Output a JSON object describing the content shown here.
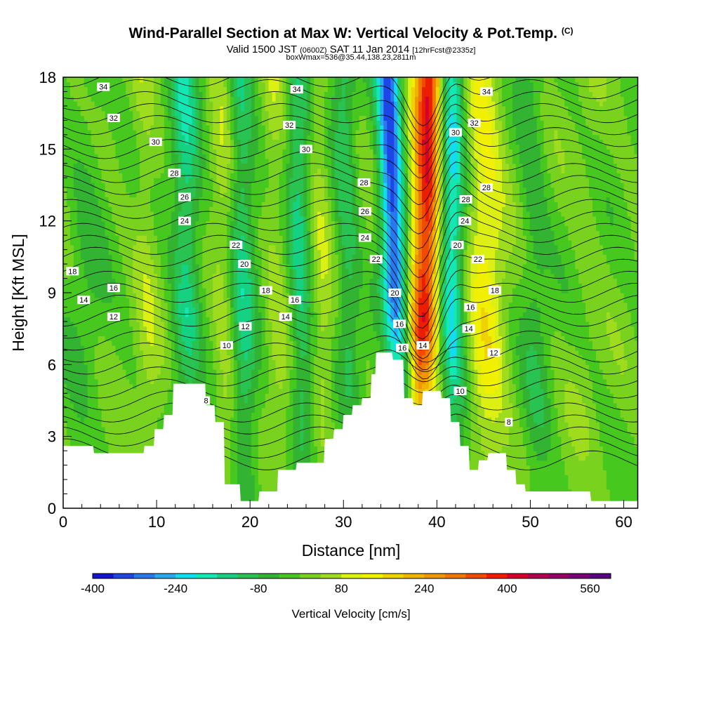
{
  "header": {
    "title": "Wind-Parallel Section at Max W: Vertical Velocity & Pot.Temp.",
    "title_units": "(C)",
    "valid_label": "Valid 1500 JST",
    "valid_utc": "(0600Z)",
    "valid_date": "SAT 11 Jan 2014",
    "forecast": "[12hrFcst@2335z]",
    "box_info": "boxWmax=536@35.44,138.23,2811m"
  },
  "chart_data": {
    "type": "heatmap",
    "xlabel": "Distance [nm]",
    "ylabel": "Height [Kft MSL]",
    "xlim": [
      0,
      61.5
    ],
    "ylim": [
      0,
      18
    ],
    "xticks": [
      0,
      10,
      20,
      30,
      40,
      50,
      60
    ],
    "yticks": [
      0,
      3,
      6,
      9,
      12,
      15,
      18
    ],
    "colorbar": {
      "label": "Vertical Velocity [cm/s]",
      "tick_labels": [
        -400,
        -240,
        -80,
        80,
        240,
        400,
        560
      ],
      "levels": [
        -400,
        -360,
        -320,
        -280,
        -240,
        -200,
        -160,
        -120,
        -80,
        -40,
        0,
        40,
        80,
        120,
        160,
        200,
        240,
        280,
        320,
        360,
        400,
        440,
        480,
        520,
        560
      ],
      "colors": [
        "#1414d2",
        "#1e46e6",
        "#2878ee",
        "#28aaf0",
        "#14dcf0",
        "#14e6b4",
        "#14d282",
        "#28c350",
        "#32b432",
        "#46c81e",
        "#78d21e",
        "#a0dc1e",
        "#dcf014",
        "#f0f000",
        "#f0d200",
        "#f0b400",
        "#f09600",
        "#f07800",
        "#f04b00",
        "#eb1e00",
        "#d2002d",
        "#b40050",
        "#960064",
        "#780078",
        "#5a0082"
      ]
    },
    "terrain_kft": [
      [
        0,
        2.6
      ],
      [
        3.2,
        2.6
      ],
      [
        3.3,
        2.3
      ],
      [
        8.6,
        2.3
      ],
      [
        8.7,
        2.6
      ],
      [
        9.7,
        2.6
      ],
      [
        9.8,
        3.3
      ],
      [
        10.7,
        3.3
      ],
      [
        10.8,
        3.9
      ],
      [
        11.7,
        3.9
      ],
      [
        11.8,
        5.2
      ],
      [
        15.2,
        5.2
      ],
      [
        15.3,
        4.3
      ],
      [
        16.2,
        4.3
      ],
      [
        16.3,
        3.6
      ],
      [
        17.2,
        3.6
      ],
      [
        17.3,
        1.0
      ],
      [
        18.9,
        1.0
      ],
      [
        19.0,
        0.3
      ],
      [
        20.9,
        0.3
      ],
      [
        21.0,
        0.7
      ],
      [
        22.9,
        0.7
      ],
      [
        23.0,
        1.6
      ],
      [
        24.9,
        1.6
      ],
      [
        25.0,
        1.9
      ],
      [
        27.9,
        1.9
      ],
      [
        28.0,
        2.9
      ],
      [
        28.9,
        2.9
      ],
      [
        29.0,
        3.3
      ],
      [
        29.9,
        3.3
      ],
      [
        30.0,
        3.9
      ],
      [
        30.9,
        3.9
      ],
      [
        31.0,
        4.3
      ],
      [
        31.9,
        4.3
      ],
      [
        32.0,
        4.6
      ],
      [
        32.9,
        4.6
      ],
      [
        33.0,
        5.6
      ],
      [
        33.4,
        5.6
      ],
      [
        33.5,
        6.5
      ],
      [
        35.2,
        6.5
      ],
      [
        35.3,
        6.2
      ],
      [
        36.4,
        6.2
      ],
      [
        36.5,
        4.6
      ],
      [
        37.4,
        4.6
      ],
      [
        37.5,
        4.3
      ],
      [
        38.4,
        4.3
      ],
      [
        38.5,
        4.9
      ],
      [
        40.4,
        4.9
      ],
      [
        40.5,
        4.6
      ],
      [
        41.4,
        4.6
      ],
      [
        41.5,
        3.6
      ],
      [
        42.4,
        3.6
      ],
      [
        42.5,
        2.6
      ],
      [
        43.4,
        2.6
      ],
      [
        43.5,
        1.6
      ],
      [
        44.4,
        1.6
      ],
      [
        44.5,
        2.0
      ],
      [
        45.4,
        2.0
      ],
      [
        45.5,
        2.3
      ],
      [
        47.4,
        2.3
      ],
      [
        47.5,
        1.6
      ],
      [
        48.4,
        1.6
      ],
      [
        48.5,
        1.0
      ],
      [
        49.4,
        1.0
      ],
      [
        49.5,
        0.7
      ],
      [
        56.4,
        0.7
      ],
      [
        56.5,
        0.3
      ],
      [
        61.5,
        0.3
      ]
    ],
    "w_features": [
      {
        "x0": 36.2,
        "x1": 34.8,
        "half_width": 1.3,
        "value": -340
      },
      {
        "x0": 38.2,
        "x1": 39.2,
        "half_width": 1.6,
        "value": 400
      },
      {
        "x0": 41.5,
        "x1": 41.5,
        "half_width": 1.4,
        "value": -220
      },
      {
        "x0": 45.8,
        "x1": 44.8,
        "half_width": 2.0,
        "value": 130
      },
      {
        "x0": 55.0,
        "x1": 56.5,
        "half_width": 1.6,
        "value": 20
      },
      {
        "x0": 2.0,
        "x1": 2.8,
        "half_width": 2.0,
        "value": -40
      },
      {
        "x0": 13.5,
        "x1": 13.0,
        "half_width": 1.5,
        "value": -140
      },
      {
        "x0": 19.5,
        "x1": 19.0,
        "half_width": 1.4,
        "value": -120
      },
      {
        "x0": 25.8,
        "x1": 25.0,
        "half_width": 1.2,
        "value": -120
      },
      {
        "x0": 31.0,
        "x1": 30.0,
        "half_width": 1.2,
        "value": -100
      },
      {
        "x0": 9.5,
        "x1": 8.5,
        "half_width": 1.3,
        "value": 50
      },
      {
        "x0": 17.5,
        "x1": 17.0,
        "half_width": 1.2,
        "value": 60
      },
      {
        "x0": 23.2,
        "x1": 22.5,
        "half_width": 1.2,
        "value": 50
      },
      {
        "x0": 28.2,
        "x1": 27.2,
        "half_width": 1.0,
        "value": 60
      },
      {
        "x0": 51.0,
        "x1": 50.0,
        "half_width": 1.5,
        "value": -60
      }
    ],
    "contour_labels": [
      {
        "text": "34",
        "x": 4.3,
        "y": 17.6
      },
      {
        "text": "34",
        "x": 25.0,
        "y": 17.5
      },
      {
        "text": "34",
        "x": 45.3,
        "y": 17.4
      },
      {
        "text": "32",
        "x": 5.4,
        "y": 16.3
      },
      {
        "text": "32",
        "x": 24.2,
        "y": 16.0
      },
      {
        "text": "32",
        "x": 44.0,
        "y": 16.1
      },
      {
        "text": "30",
        "x": 9.9,
        "y": 15.3
      },
      {
        "text": "30",
        "x": 26.0,
        "y": 15.0
      },
      {
        "text": "30",
        "x": 42.0,
        "y": 15.7
      },
      {
        "text": "28",
        "x": 11.9,
        "y": 14.0
      },
      {
        "text": "28",
        "x": 32.2,
        "y": 13.6
      },
      {
        "text": "28",
        "x": 45.3,
        "y": 13.4
      },
      {
        "text": "28",
        "x": 43.1,
        "y": 12.9
      },
      {
        "text": "26",
        "x": 13.0,
        "y": 13.0
      },
      {
        "text": "26",
        "x": 32.3,
        "y": 12.4
      },
      {
        "text": "24",
        "x": 13.0,
        "y": 12.0
      },
      {
        "text": "24",
        "x": 32.3,
        "y": 11.3
      },
      {
        "text": "24",
        "x": 43.0,
        "y": 12.0
      },
      {
        "text": "22",
        "x": 18.5,
        "y": 11.0
      },
      {
        "text": "22",
        "x": 33.5,
        "y": 10.4
      },
      {
        "text": "22",
        "x": 44.4,
        "y": 10.4
      },
      {
        "text": "20",
        "x": 19.4,
        "y": 10.2
      },
      {
        "text": "20",
        "x": 42.2,
        "y": 11.0
      },
      {
        "text": "20",
        "x": 35.5,
        "y": 9.0
      },
      {
        "text": "18",
        "x": 1.0,
        "y": 9.9
      },
      {
        "text": "18",
        "x": 21.7,
        "y": 9.1
      },
      {
        "text": "18",
        "x": 46.2,
        "y": 9.1
      },
      {
        "text": "16",
        "x": 5.4,
        "y": 9.2
      },
      {
        "text": "16",
        "x": 24.8,
        "y": 8.7
      },
      {
        "text": "16",
        "x": 36.0,
        "y": 7.7
      },
      {
        "text": "16",
        "x": 43.6,
        "y": 8.4
      },
      {
        "text": "16",
        "x": 36.3,
        "y": 6.7
      },
      {
        "text": "14",
        "x": 2.2,
        "y": 8.7
      },
      {
        "text": "14",
        "x": 23.8,
        "y": 8.0
      },
      {
        "text": "14",
        "x": 38.5,
        "y": 6.8
      },
      {
        "text": "14",
        "x": 43.4,
        "y": 7.5
      },
      {
        "text": "12",
        "x": 5.4,
        "y": 8.0
      },
      {
        "text": "12",
        "x": 19.5,
        "y": 7.6
      },
      {
        "text": "12",
        "x": 46.1,
        "y": 6.5
      },
      {
        "text": "10",
        "x": 17.5,
        "y": 6.8
      },
      {
        "text": "10",
        "x": 42.5,
        "y": 4.9
      },
      {
        "text": "8",
        "x": 15.3,
        "y": 4.5
      },
      {
        "text": "8",
        "x": 47.7,
        "y": 3.6
      }
    ]
  }
}
